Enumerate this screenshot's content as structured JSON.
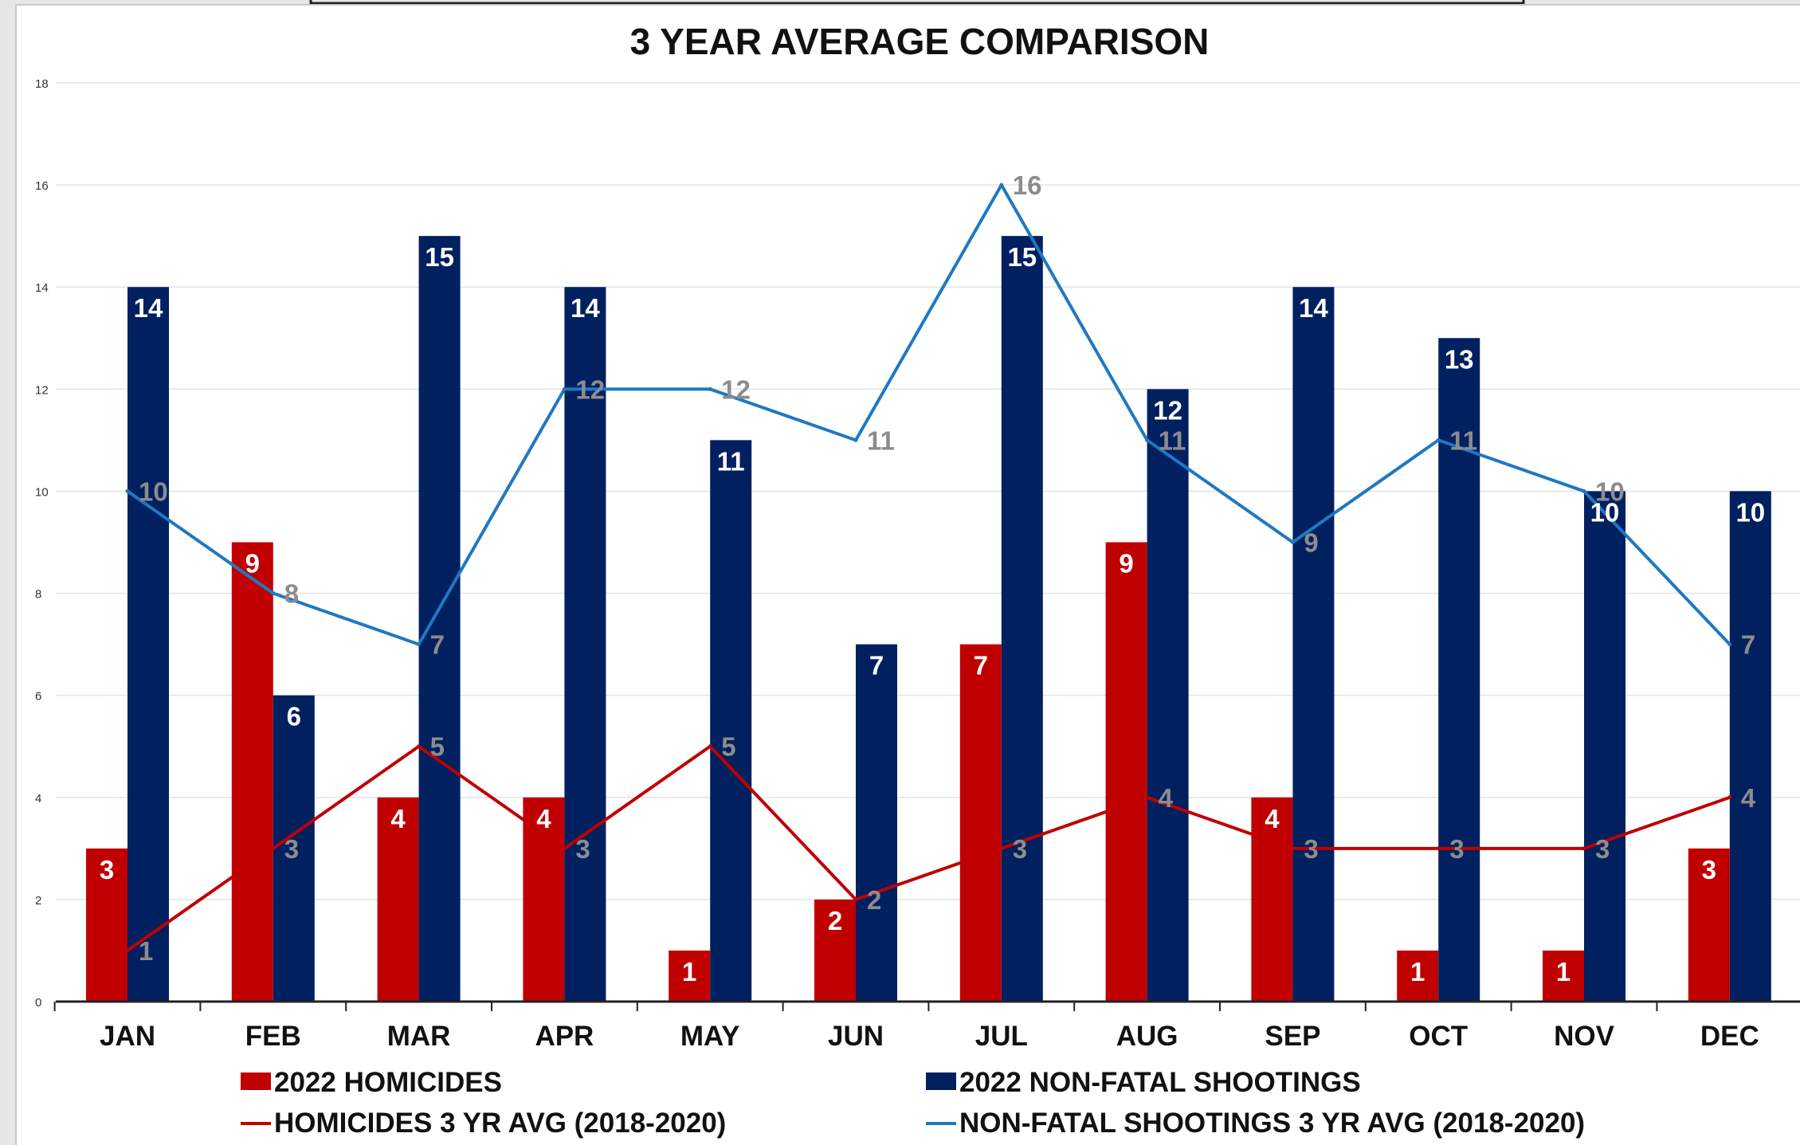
{
  "chart_data": {
    "type": "bar",
    "title": "3 YEAR AVERAGE COMPARISON",
    "xlabel": "",
    "ylabel": "",
    "ylim": [
      0,
      18
    ],
    "yticks": [
      0,
      2,
      4,
      6,
      8,
      10,
      12,
      14,
      16,
      18
    ],
    "grid": true,
    "legend_position": "bottom",
    "categories": [
      "JAN",
      "FEB",
      "MAR",
      "APR",
      "MAY",
      "JUN",
      "JUL",
      "AUG",
      "SEP",
      "OCT",
      "NOV",
      "DEC"
    ],
    "bar_series": [
      {
        "name": "2022 HOMICIDES",
        "kind": "bar",
        "color": "#c00000",
        "values": [
          3,
          9,
          4,
          4,
          1,
          2,
          7,
          9,
          4,
          1,
          1,
          3
        ]
      },
      {
        "name": "2022 NON-FATAL SHOOTINGS",
        "kind": "bar",
        "color": "#002060",
        "values": [
          14,
          6,
          15,
          14,
          11,
          7,
          15,
          12,
          14,
          13,
          10,
          10
        ]
      }
    ],
    "line_series": [
      {
        "name": "HOMICIDES 3 YR AVG (2018-2020)",
        "kind": "line",
        "color": "#c00000",
        "values": [
          1,
          3,
          5,
          3,
          5,
          2,
          3,
          4,
          3,
          3,
          3,
          4
        ]
      },
      {
        "name": "NON-FATAL SHOOTINGS 3 YR AVG (2018-2020)",
        "kind": "line",
        "color": "#1f78c1",
        "values": [
          10,
          8,
          7,
          12,
          12,
          11,
          16,
          11,
          9,
          11,
          10,
          7
        ]
      }
    ],
    "label_color": "#8c8c8c"
  }
}
